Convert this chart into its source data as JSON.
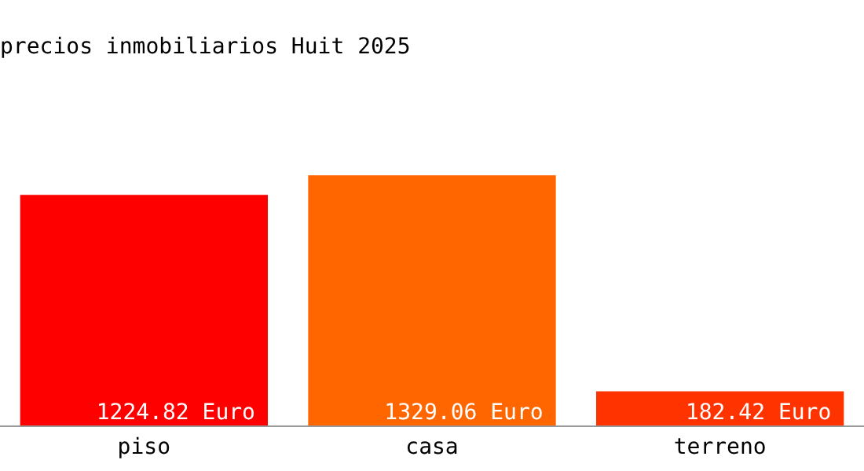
{
  "chart_data": {
    "type": "bar",
    "title": "precios inmobiliarios Huit 2025",
    "categories": [
      "piso",
      "casa",
      "terreno"
    ],
    "values": [
      1224.82,
      1329.06,
      182.42
    ],
    "value_labels": [
      "1224.82 Euro",
      "1329.06 Euro",
      "182.42 Euro"
    ],
    "colors": [
      "#ff0000",
      "#ff6600",
      "#ff3300"
    ],
    "grid": false,
    "legend": false
  }
}
